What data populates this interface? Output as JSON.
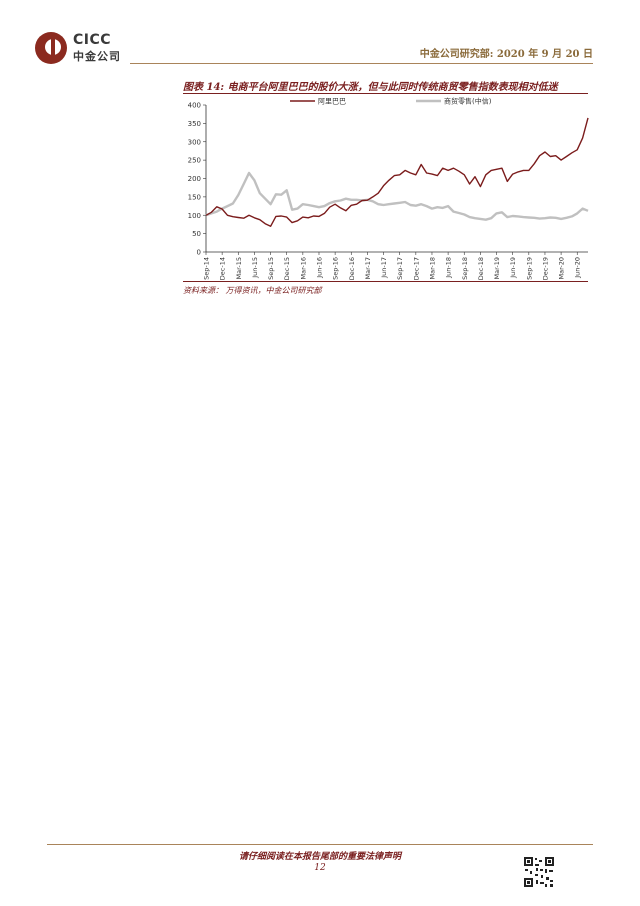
{
  "header": {
    "logo_en": "CICC",
    "logo_cn": "中金公司",
    "dept_date": "中金公司研究部: 2020 年 9 月 20 日"
  },
  "figure": {
    "title": "图表 14: 电商平台阿里巴巴的股价大涨，但与此同时传统商贸零售指数表现相对低迷",
    "source": "资料来源：  万得资讯，中金公司研究部"
  },
  "footer": {
    "note": "请仔细阅读在本报告尾部的重要法律声明",
    "page": "12"
  },
  "colors": {
    "alibaba": "#7b1c1c",
    "retail": "#c0c0c0",
    "accent": "#a9845a"
  },
  "chart_data": {
    "type": "line",
    "ylim": [
      0,
      400
    ],
    "yticks": [
      0,
      50,
      100,
      150,
      200,
      250,
      300,
      350,
      400
    ],
    "xticks": [
      "Sep-14",
      "Dec-14",
      "Mar-15",
      "Jun-15",
      "Sep-15",
      "Dec-15",
      "Mar-16",
      "Jun-16",
      "Sep-16",
      "Dec-16",
      "Mar-17",
      "Jun-17",
      "Sep-17",
      "Dec-17",
      "Mar-18",
      "Jun-18",
      "Sep-18",
      "Dec-18",
      "Mar-19",
      "Jun-19",
      "Sep-19",
      "Dec-19",
      "Mar-20",
      "Jun-20"
    ],
    "legend_position": "top",
    "series": [
      {
        "name": "阿里巴巴",
        "color": "#7b1c1c",
        "values": [
          100,
          108,
          123,
          117,
          100,
          96,
          94,
          92,
          100,
          93,
          88,
          77,
          70,
          97,
          98,
          95,
          80,
          85,
          95,
          93,
          98,
          97,
          105,
          122,
          130,
          120,
          112,
          127,
          130,
          140,
          141,
          150,
          160,
          180,
          195,
          208,
          210,
          222,
          215,
          210,
          238,
          215,
          212,
          208,
          228,
          222,
          228,
          220,
          210,
          185,
          205,
          178,
          210,
          222,
          225,
          228,
          192,
          212,
          218,
          222,
          222,
          240,
          262,
          272,
          260,
          262,
          250,
          260,
          270,
          278,
          310,
          365
        ]
      },
      {
        "name": "商贸零售(中信)",
        "color": "#c0c0c0",
        "values": [
          100,
          105,
          110,
          118,
          125,
          132,
          155,
          185,
          215,
          195,
          160,
          145,
          130,
          157,
          156,
          168,
          115,
          118,
          130,
          128,
          125,
          122,
          125,
          133,
          138,
          140,
          145,
          142,
          142,
          140,
          142,
          138,
          130,
          128,
          130,
          132,
          134,
          136,
          128,
          126,
          130,
          125,
          118,
          122,
          120,
          125,
          110,
          106,
          102,
          95,
          92,
          90,
          88,
          92,
          105,
          108,
          95,
          98,
          97,
          95,
          94,
          93,
          91,
          92,
          94,
          93,
          90,
          93,
          97,
          105,
          118,
          112
        ]
      }
    ]
  }
}
